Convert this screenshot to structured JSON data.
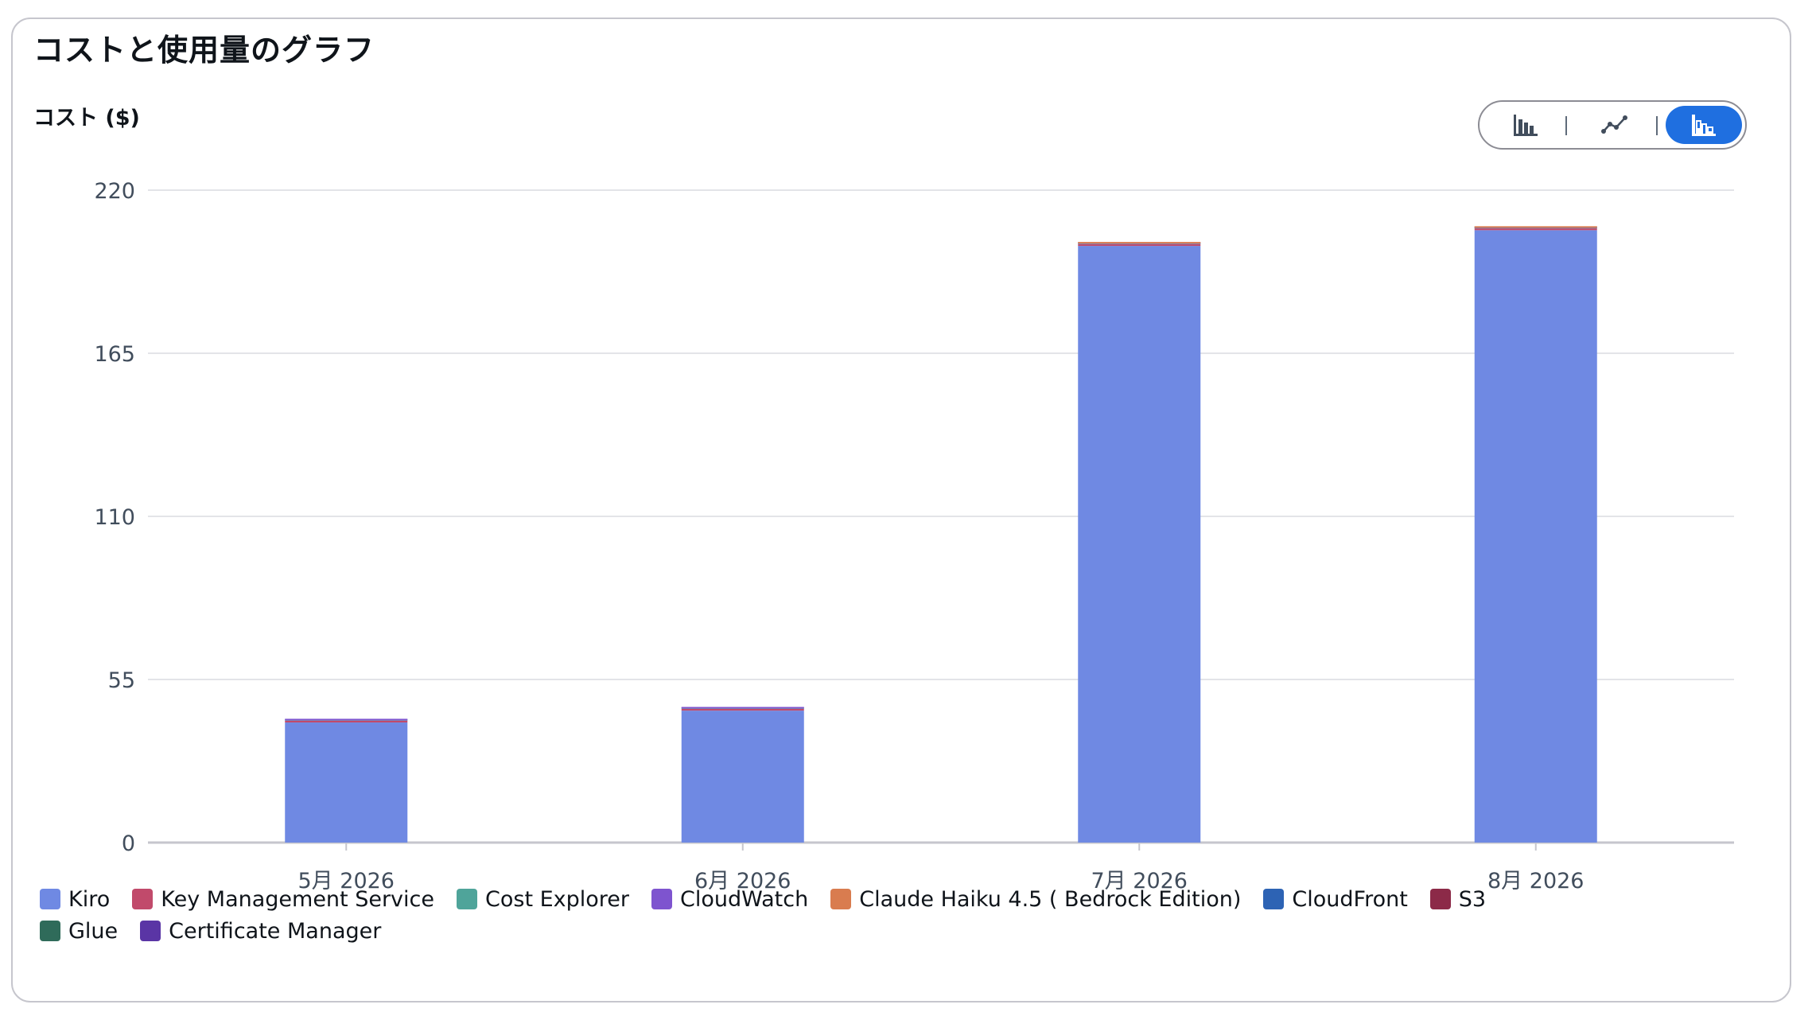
{
  "title": "コストと使用量のグラフ",
  "y_axis_title": "コスト ($)",
  "view_toggle": {
    "options": [
      "bar-chart-icon",
      "line-chart-icon",
      "stacked-bar-chart-icon"
    ],
    "selected": "stacked-bar-chart-icon"
  },
  "chart_data": {
    "type": "bar",
    "stacked": true,
    "categories": [
      "5月 2026",
      "6月 2026",
      "7月 2026",
      "8月 2026"
    ],
    "ylim": [
      0,
      220
    ],
    "yticks": [
      "220",
      "165",
      "110",
      "55",
      "0"
    ],
    "ytick_values": [
      220,
      165,
      110,
      55,
      0
    ],
    "grid": true,
    "legend_position": "bottom",
    "series": [
      {
        "name": "Kiro",
        "color": "#6f89e3",
        "values": [
          40.5,
          44.5,
          201.2,
          206.5
        ]
      },
      {
        "name": "Key Management Service",
        "color": "#c14a6b",
        "values": [
          0.6,
          0.6,
          0.6,
          0.6
        ]
      },
      {
        "name": "Cost Explorer",
        "color": "#4fa49a",
        "values": [
          0.1,
          0.1,
          0.1,
          0.1
        ]
      },
      {
        "name": "CloudWatch",
        "color": "#7e54cf",
        "values": [
          0.05,
          0.05,
          0.1,
          0.1
        ]
      },
      {
        "name": "Claude Haiku 4.5 ( Bedrock Edition)",
        "color": "#d97c4f",
        "values": [
          0,
          0,
          0.05,
          0.05
        ]
      },
      {
        "name": "CloudFront",
        "color": "#2d63b4",
        "values": [
          0,
          0,
          0,
          0
        ]
      },
      {
        "name": "S3",
        "color": "#8c2a48",
        "values": [
          0,
          0,
          0,
          0
        ]
      },
      {
        "name": "Glue",
        "color": "#2f6b5a",
        "values": [
          0,
          0,
          0,
          0
        ]
      },
      {
        "name": "Certificate Manager",
        "color": "#5a35a5",
        "values": [
          0,
          0,
          0,
          0
        ]
      }
    ]
  }
}
